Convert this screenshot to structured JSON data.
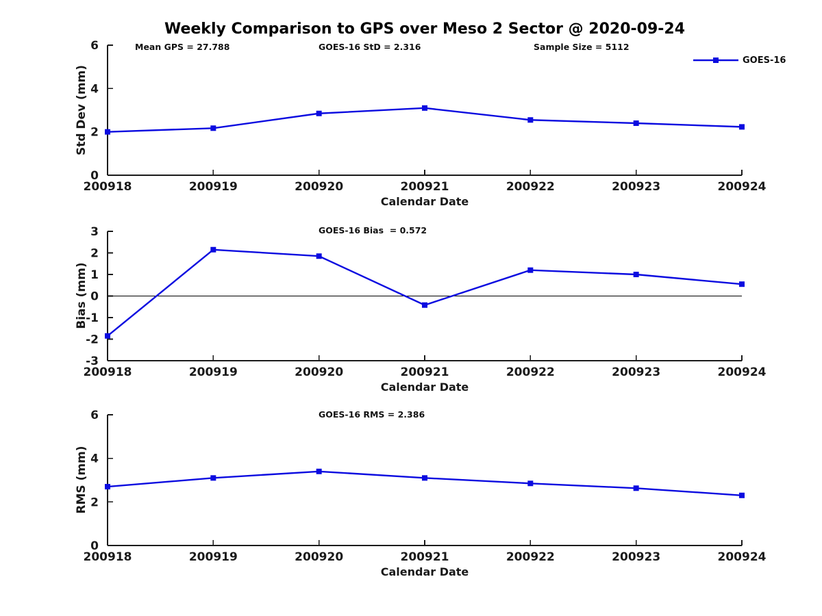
{
  "figure": {
    "title": "Weekly Comparison to GPS over Meso 2 Sector @ 2020-09-24",
    "background": "#ffffff",
    "line_color": "#0b0be0",
    "axis_color": "#1a1a1a",
    "legend": {
      "label": "GOES-16",
      "marker": "filled-square"
    }
  },
  "annotations": {
    "mean_gps": "Mean GPS = 27.788",
    "goes16_std": "GOES-16 StD = 2.316",
    "sample_size": "Sample Size = 5112",
    "goes16_bias": "GOES-16 Bias  = 0.572",
    "goes16_rms": "GOES-16 RMS = 2.386"
  },
  "chart_data": [
    {
      "type": "line",
      "categories": [
        "200918",
        "200919",
        "200920",
        "200921",
        "200922",
        "200923",
        "200924"
      ],
      "series": [
        {
          "name": "GOES-16",
          "values": [
            2.0,
            2.17,
            2.85,
            3.1,
            2.55,
            2.4,
            2.23
          ]
        }
      ],
      "xlabel": "Calendar Date",
      "ylabel": "Std Dev (mm)",
      "ylim": [
        0,
        6
      ],
      "yticks": [
        0,
        2,
        4,
        6
      ],
      "grid": false,
      "zero_line": false,
      "marker": "square",
      "line_color": "#0b0be0",
      "legend_position": "top-right"
    },
    {
      "type": "line",
      "categories": [
        "200918",
        "200919",
        "200920",
        "200921",
        "200922",
        "200923",
        "200924"
      ],
      "series": [
        {
          "name": "GOES-16",
          "values": [
            -1.85,
            2.15,
            1.85,
            -0.42,
            1.2,
            1.0,
            0.55
          ]
        }
      ],
      "xlabel": "Calendar Date",
      "ylabel": "Bias (mm)",
      "ylim": [
        -3,
        3
      ],
      "yticks": [
        -3,
        -2,
        -1,
        0,
        1,
        2,
        3
      ],
      "grid": false,
      "zero_line": true,
      "marker": "square",
      "line_color": "#0b0be0",
      "legend_position": "none"
    },
    {
      "type": "line",
      "categories": [
        "200918",
        "200919",
        "200920",
        "200921",
        "200922",
        "200923",
        "200924"
      ],
      "series": [
        {
          "name": "GOES-16",
          "values": [
            2.7,
            3.1,
            3.4,
            3.1,
            2.85,
            2.63,
            2.3
          ]
        }
      ],
      "xlabel": "Calendar Date",
      "ylabel": "RMS (mm)",
      "ylim": [
        0,
        6
      ],
      "yticks": [
        0,
        2,
        4,
        6
      ],
      "grid": false,
      "zero_line": false,
      "marker": "square",
      "line_color": "#0b0be0",
      "legend_position": "none"
    }
  ]
}
